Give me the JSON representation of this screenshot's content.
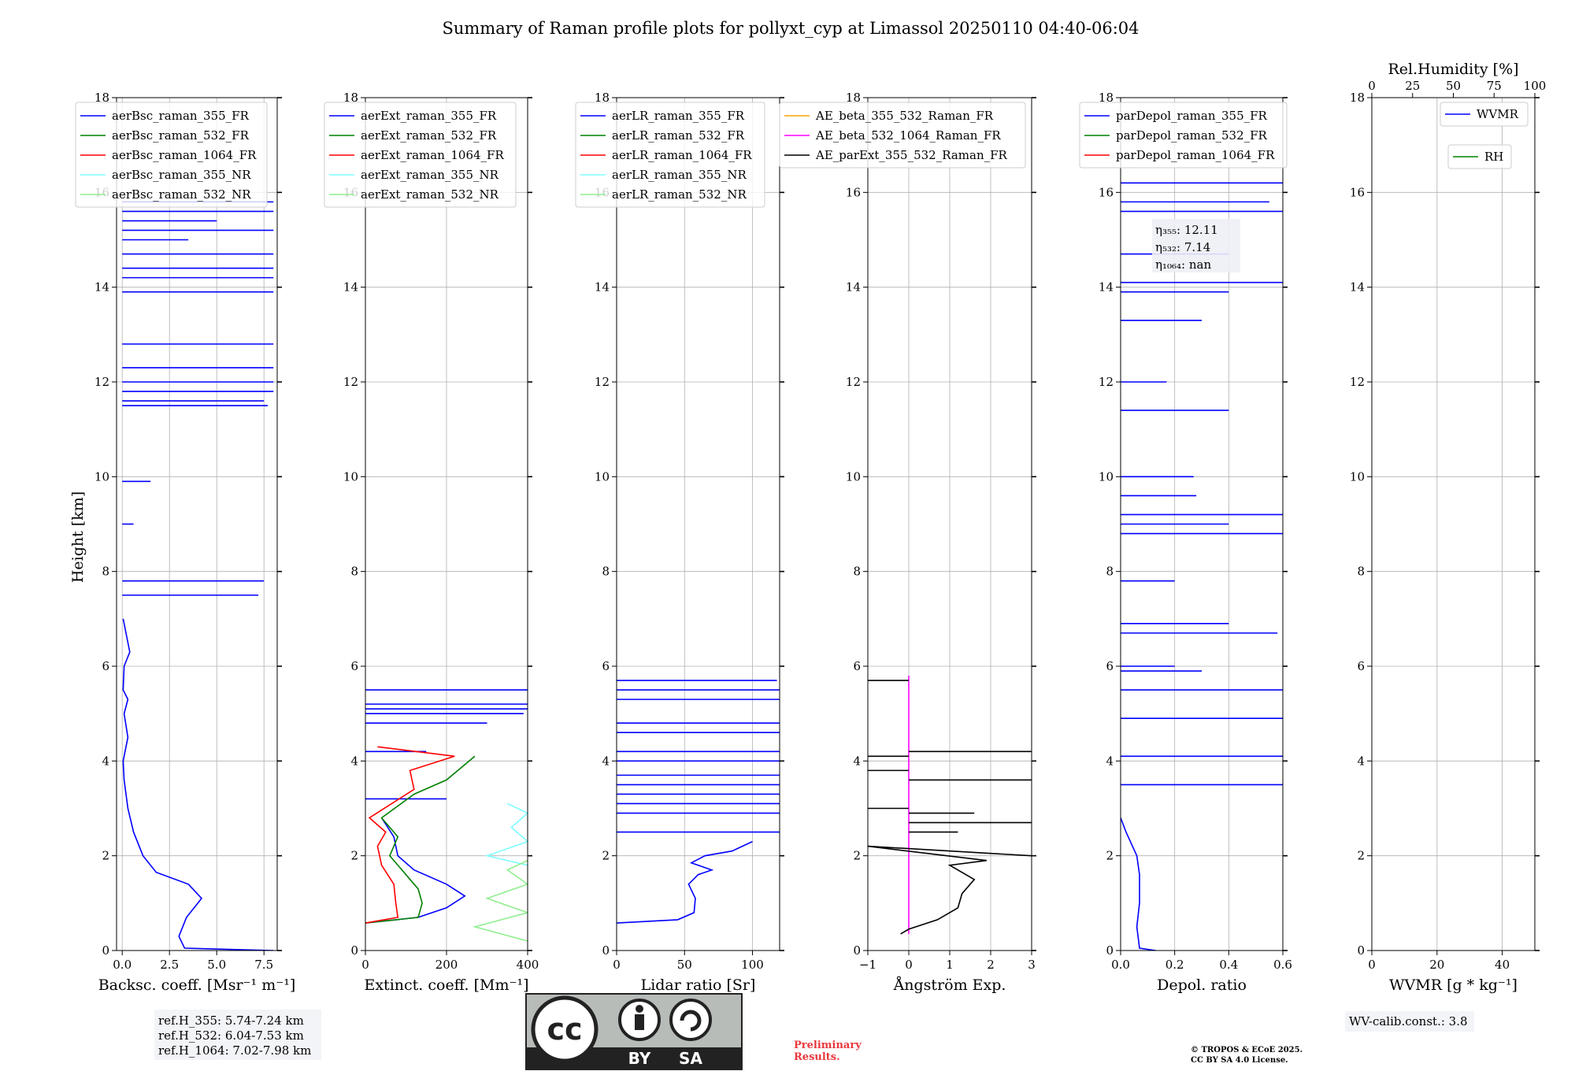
{
  "figure": {
    "title": "Summary of Raman profile plots for pollyxt_cyp at Limassol 20250110 04:40-06:04",
    "ylabel": "Height [km]",
    "colors": {
      "blue": "#0000ff",
      "green": "#008000",
      "red": "#ff0000",
      "cyan": "#80ffff",
      "lightgreen": "#90ee90",
      "orange": "#ffa500",
      "magenta": "#ff00ff",
      "black": "#000000",
      "grid": "#b0b0b0"
    }
  },
  "chart_data": [
    {
      "type": "line",
      "xlabel": "Backsc. coeff. [Msr⁻¹ m⁻¹]",
      "xlim": [
        -0.3,
        8.2
      ],
      "ylim": [
        0,
        18
      ],
      "xticks": [
        0,
        2.5,
        5,
        7.5
      ],
      "xticklabels": [
        "0.0",
        "2.5",
        "5.0",
        "7.5"
      ],
      "yticks": [
        0,
        2,
        4,
        6,
        8,
        10,
        12,
        14,
        16,
        18
      ],
      "legend": [
        "aerBsc_raman_355_FR",
        "aerBsc_raman_532_FR",
        "aerBsc_raman_1064_FR",
        "aerBsc_raman_355_NR",
        "aerBsc_raman_532_NR"
      ],
      "legend_placement": "upper-left",
      "series": [
        {
          "name": "aerBsc_raman_355_FR",
          "color": "blue",
          "points": [
            [
              8.0,
              0.0
            ],
            [
              3.3,
              0.05
            ],
            [
              3.0,
              0.3
            ],
            [
              3.4,
              0.7
            ],
            [
              4.2,
              1.1
            ],
            [
              3.5,
              1.4
            ],
            [
              1.8,
              1.65
            ],
            [
              1.1,
              2.0
            ],
            [
              0.6,
              2.5
            ],
            [
              0.3,
              3.0
            ],
            [
              0.1,
              3.6
            ],
            [
              0.05,
              4.0
            ],
            [
              0.3,
              4.5
            ],
            [
              0.1,
              5.0
            ],
            [
              0.3,
              5.3
            ],
            [
              0.05,
              5.5
            ],
            [
              0.1,
              6.0
            ],
            [
              0.4,
              6.3
            ],
            [
              0.2,
              6.7
            ],
            [
              0.05,
              7.0
            ]
          ],
          "spikes": [
            [
              7.2,
              7.5
            ],
            [
              7.5,
              7.8
            ],
            [
              1.5,
              9.9
            ],
            [
              0.6,
              9.0
            ],
            [
              7.7,
              11.5
            ],
            [
              7.5,
              11.6
            ],
            [
              8.0,
              11.8
            ],
            [
              8.0,
              12.0
            ],
            [
              8.0,
              12.3
            ],
            [
              8.0,
              12.8
            ],
            [
              8.0,
              13.9
            ],
            [
              8.0,
              14.2
            ],
            [
              8.0,
              14.4
            ],
            [
              8.0,
              14.7
            ],
            [
              8.0,
              15.2
            ],
            [
              8.0,
              15.6
            ],
            [
              5.0,
              15.4
            ],
            [
              3.5,
              15.0
            ],
            [
              8.0,
              15.8
            ]
          ]
        }
      ]
    },
    {
      "type": "line",
      "xlabel": "Extinct. coeff. [Mm⁻¹]",
      "xlim": [
        0,
        400
      ],
      "ylim": [
        0,
        18
      ],
      "xticks": [
        0,
        200,
        400
      ],
      "xticklabels": [
        "0",
        "200",
        "400"
      ],
      "yticks": [
        0,
        2,
        4,
        6,
        8,
        10,
        12,
        14,
        16,
        18
      ],
      "legend": [
        "aerExt_raman_355_FR",
        "aerExt_raman_532_FR",
        "aerExt_raman_1064_FR",
        "aerExt_raman_355_NR",
        "aerExt_raman_532_NR"
      ],
      "legend_placement": "upper-left",
      "series": [
        {
          "name": "aerExt_raman_355_FR",
          "color": "blue",
          "points": [
            [
              0,
              0.58
            ],
            [
              130,
              0.7
            ],
            [
              200,
              0.9
            ],
            [
              245,
              1.15
            ],
            [
              200,
              1.4
            ],
            [
              120,
              1.7
            ],
            [
              80,
              2.0
            ],
            [
              70,
              2.4
            ],
            [
              40,
              2.8
            ]
          ],
          "spikes": [
            [
              400,
              5.1
            ],
            [
              400,
              5.2
            ],
            [
              390,
              5.0
            ],
            [
              400,
              5.5
            ],
            [
              300,
              4.8
            ],
            [
              150,
              4.2
            ],
            [
              200,
              3.2
            ]
          ]
        },
        {
          "name": "aerExt_raman_532_FR",
          "color": "green",
          "points": [
            [
              0,
              0.58
            ],
            [
              130,
              0.7
            ],
            [
              140,
              1.0
            ],
            [
              130,
              1.3
            ],
            [
              90,
              1.7
            ],
            [
              60,
              2.0
            ],
            [
              80,
              2.4
            ],
            [
              40,
              2.8
            ],
            [
              120,
              3.3
            ],
            [
              200,
              3.6
            ],
            [
              270,
              4.1
            ]
          ],
          "spikes": []
        },
        {
          "name": "aerExt_raman_1064_FR",
          "color": "red",
          "points": [
            [
              0,
              0.58
            ],
            [
              80,
              0.7
            ],
            [
              75,
              1.0
            ],
            [
              70,
              1.4
            ],
            [
              40,
              1.8
            ],
            [
              30,
              2.2
            ],
            [
              50,
              2.5
            ],
            [
              10,
              2.8
            ],
            [
              120,
              3.4
            ],
            [
              110,
              3.8
            ],
            [
              220,
              4.1
            ],
            [
              30,
              4.3
            ]
          ],
          "spikes": []
        },
        {
          "name": "aerExt_raman_355_NR",
          "color": "cyan",
          "points": [
            [
              400,
              1.8
            ],
            [
              300,
              2.0
            ],
            [
              400,
              2.3
            ],
            [
              360,
              2.6
            ],
            [
              400,
              2.9
            ],
            [
              350,
              3.1
            ]
          ],
          "spikes": []
        },
        {
          "name": "aerExt_raman_532_NR",
          "color": "lightgreen",
          "points": [
            [
              400,
              0.2
            ],
            [
              270,
              0.5
            ],
            [
              400,
              0.8
            ],
            [
              300,
              1.1
            ],
            [
              400,
              1.4
            ],
            [
              350,
              1.7
            ],
            [
              400,
              1.9
            ]
          ],
          "spikes": []
        }
      ]
    },
    {
      "type": "line",
      "xlabel": "Lidar ratio [Sr]",
      "xlim": [
        0,
        120
      ],
      "ylim": [
        0,
        18
      ],
      "xticks": [
        0,
        50,
        100
      ],
      "xticklabels": [
        "0",
        "50",
        "100"
      ],
      "yticks": [
        0,
        2,
        4,
        6,
        8,
        10,
        12,
        14,
        16,
        18
      ],
      "legend": [
        "aerLR_raman_355_FR",
        "aerLR_raman_532_FR",
        "aerLR_raman_1064_FR",
        "aerLR_raman_355_NR",
        "aerLR_raman_532_NR"
      ],
      "legend_placement": "upper-left",
      "series": [
        {
          "name": "aerLR_raman_355_FR",
          "color": "blue",
          "points": [
            [
              0,
              0.58
            ],
            [
              45,
              0.65
            ],
            [
              57,
              0.8
            ],
            [
              58,
              1.1
            ],
            [
              53,
              1.4
            ],
            [
              60,
              1.6
            ],
            [
              70,
              1.7
            ],
            [
              55,
              1.85
            ],
            [
              65,
              2.0
            ],
            [
              85,
              2.1
            ],
            [
              100,
              2.3
            ]
          ],
          "spikes": [
            [
              120,
              2.5
            ],
            [
              120,
              2.9
            ],
            [
              120,
              3.1
            ],
            [
              120,
              3.3
            ],
            [
              120,
              3.5
            ],
            [
              120,
              3.7
            ],
            [
              120,
              4.0
            ],
            [
              120,
              4.2
            ],
            [
              120,
              4.6
            ],
            [
              120,
              4.8
            ],
            [
              120,
              5.3
            ],
            [
              120,
              5.5
            ],
            [
              118,
              5.7
            ]
          ]
        }
      ]
    },
    {
      "type": "line",
      "xlabel": "Ångström Exp.",
      "xlim": [
        -1,
        3
      ],
      "ylim": [
        0,
        18
      ],
      "xticks": [
        -1,
        0,
        1,
        2,
        3
      ],
      "xticklabels": [
        "−1",
        "0",
        "1",
        "2",
        "3"
      ],
      "yticks": [
        0,
        2,
        4,
        6,
        8,
        10,
        12,
        14,
        16,
        18
      ],
      "legend": [
        "AE_beta_355_532_Raman_FR",
        "AE_beta_532_1064_Raman_FR",
        "AE_parExt_355_532_Raman_FR"
      ],
      "legend_placement": "upper-right",
      "series": [
        {
          "name": "AE_beta_532_1064_Raman_FR",
          "color": "magenta",
          "points": [
            [
              0,
              0.35
            ],
            [
              0,
              5.8
            ]
          ],
          "spikes": []
        },
        {
          "name": "AE_parExt_355_532_Raman_FR",
          "color": "black",
          "points": [
            [
              -0.2,
              0.35
            ],
            [
              0,
              0.45
            ],
            [
              0.7,
              0.65
            ],
            [
              1.2,
              0.9
            ],
            [
              1.3,
              1.2
            ],
            [
              1.6,
              1.5
            ],
            [
              1.0,
              1.8
            ],
            [
              1.9,
              1.9
            ],
            [
              -1,
              2.2
            ],
            [
              3,
              2.0
            ]
          ],
          "spikes": [
            [
              1.2,
              2.5
            ],
            [
              3,
              2.7
            ],
            [
              1.6,
              2.9
            ],
            [
              -1,
              3.0
            ],
            [
              3,
              3.6
            ],
            [
              -1,
              3.8
            ],
            [
              3,
              4.2
            ],
            [
              -1,
              4.1
            ],
            [
              -1,
              5.7
            ],
            [
              0,
              5.8
            ],
            [
              0,
              18
            ]
          ]
        }
      ]
    },
    {
      "type": "line",
      "xlabel": "Depol. ratio",
      "xlim": [
        0,
        0.6
      ],
      "ylim": [
        0,
        18
      ],
      "xticks": [
        0,
        0.2,
        0.4,
        0.6
      ],
      "xticklabels": [
        "0.0",
        "0.2",
        "0.4",
        "0.6"
      ],
      "yticks": [
        0,
        2,
        4,
        6,
        8,
        10,
        12,
        14,
        16,
        18
      ],
      "legend": [
        "parDepol_raman_355_FR",
        "parDepol_raman_532_FR",
        "parDepol_raman_1064_FR"
      ],
      "legend_placement": "upper-left",
      "series": [
        {
          "name": "parDepol_raman_355_FR",
          "color": "blue",
          "points": [
            [
              0.13,
              0.0
            ],
            [
              0.07,
              0.05
            ],
            [
              0.06,
              0.5
            ],
            [
              0.07,
              1.0
            ],
            [
              0.07,
              1.6
            ],
            [
              0.06,
              2.0
            ],
            [
              0.02,
              2.5
            ],
            [
              0.0,
              2.8
            ]
          ],
          "spikes": [
            [
              0.6,
              3.5
            ],
            [
              0.6,
              4.1
            ],
            [
              0.6,
              4.9
            ],
            [
              0.6,
              5.5
            ],
            [
              0.3,
              5.9
            ],
            [
              0.2,
              6.0
            ],
            [
              0.58,
              6.7
            ],
            [
              0.4,
              6.9
            ],
            [
              0.2,
              7.8
            ],
            [
              0.6,
              8.8
            ],
            [
              0.4,
              9.0
            ],
            [
              0.6,
              9.2
            ],
            [
              0.28,
              9.6
            ],
            [
              0.27,
              10.0
            ],
            [
              0.4,
              11.4
            ],
            [
              0.17,
              12.0
            ],
            [
              0.3,
              13.3
            ],
            [
              0.4,
              13.9
            ],
            [
              0.6,
              14.1
            ],
            [
              0.4,
              14.7
            ],
            [
              0.6,
              15.6
            ],
            [
              0.55,
              15.8
            ],
            [
              0.6,
              16.2
            ]
          ]
        }
      ]
    },
    {
      "type": "line",
      "xlabel": "WVMR [g * kg⁻¹]",
      "xlim": [
        0,
        50
      ],
      "ylim": [
        0,
        18
      ],
      "xticks": [
        0,
        20,
        40
      ],
      "xticklabels": [
        "0",
        "20",
        "40"
      ],
      "yticks": [
        0,
        2,
        4,
        6,
        8,
        10,
        12,
        14,
        16,
        18
      ],
      "top_axis": {
        "label": "Rel.Humidity [%]",
        "xlim": [
          0,
          100
        ],
        "xticks": [
          0,
          25,
          50,
          75,
          100
        ],
        "xticklabels": [
          "0",
          "25",
          "50",
          "75",
          "100"
        ]
      },
      "legend": [
        "WVMR",
        "RH"
      ],
      "legend_placement": "upper-right",
      "series": []
    }
  ],
  "annotations": {
    "ref_heights": [
      "ref.H_355: 5.74-7.24 km",
      "ref.H_532: 6.04-7.53 km",
      "ref.H_1064: 7.02-7.98 km"
    ],
    "eta": {
      "l355": "η₃₅₅: 12.11",
      "l532": "η₅₃₂: 7.14",
      "l1064": "η₁₀₆₄: nan"
    },
    "wv_calib": "WV-calib.const.: 3.8",
    "preliminary": [
      "Preliminary",
      "Results."
    ],
    "copyright": [
      "© TROPOS & ECoE 2025.",
      "CC BY SA 4.0 License."
    ],
    "license_badge": {
      "cc": "cc",
      "by": "BY",
      "sa": "SA"
    }
  }
}
